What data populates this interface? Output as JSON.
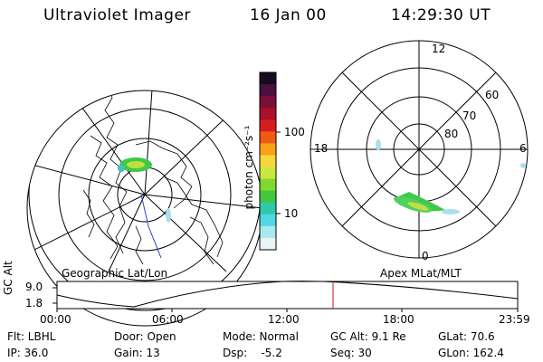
{
  "header": {
    "instrument": "Ultraviolet Imager",
    "date": "16 Jan 00",
    "time": "14:29:30 UT"
  },
  "colorbar": {
    "unit_label": "photon cm⁻²s⁻¹",
    "ticks": [
      "100",
      "10"
    ],
    "colors": [
      "#1a0a20",
      "#4a1040",
      "#7a1038",
      "#a8102c",
      "#d61e20",
      "#f05a12",
      "#f8a018",
      "#f8d838",
      "#c8e840",
      "#80d830",
      "#40c840",
      "#30c8a8",
      "#50d8e0",
      "#a8e8f0",
      "#e8f4f8"
    ]
  },
  "geo_panel": {
    "label": "Geographic Lat/Lon"
  },
  "polar_panel": {
    "label": "Apex MLat/MLT",
    "mlt_labels": {
      "top": "12",
      "left": "18",
      "right": "6",
      "bottom": "0"
    },
    "lat_labels": [
      "60",
      "70",
      "80"
    ]
  },
  "timeline": {
    "axis_label": "GC Alt",
    "y_ticks": [
      "9.0",
      "1.8"
    ],
    "x_ticks": [
      "00:00",
      "06:00",
      "12:00",
      "18:00",
      "23:59"
    ],
    "marker_color": "#d01010"
  },
  "info": {
    "filter": "Flt: LBHL",
    "door": "Door: Open",
    "mode": "Mode: Normal",
    "gc_alt": "GC Alt: 9.1 Re",
    "glat": "GLat:  70.6",
    "ip": "IP: 36.0",
    "gain": "Gain: 13",
    "dsp": "Dsp:    -5.2",
    "seq": "Seq: 30",
    "glon": "GLon: 162.4"
  }
}
